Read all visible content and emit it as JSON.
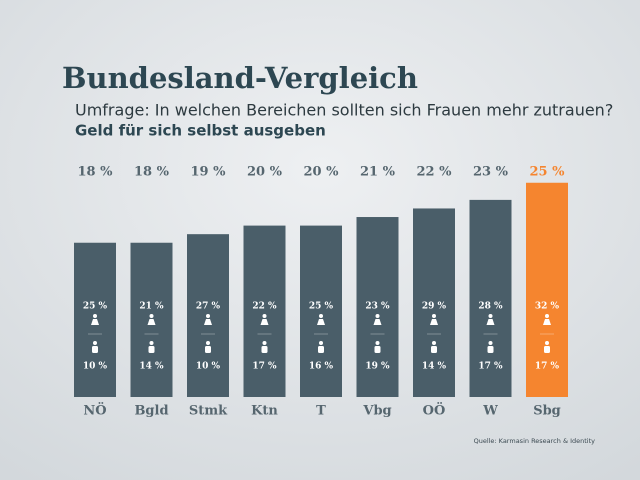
{
  "chart_data": {
    "type": "bar",
    "title": "Bundesland-Vergleich",
    "subtitle": "Umfrage: In welchen Bereichen sollten sich Frauen mehr zutrauen?",
    "question": "Geld für sich selbst ausgeben",
    "source": "Quelle: Karmasin Research & Identity",
    "categories": [
      "NÖ",
      "Bgld",
      "Stmk",
      "Ktn",
      "T",
      "Vbg",
      "OÖ",
      "W",
      "Sbg"
    ],
    "values": [
      18,
      18,
      19,
      20,
      20,
      21,
      22,
      23,
      25
    ],
    "value_labels": [
      "18 %",
      "18 %",
      "19 %",
      "20 %",
      "20 %",
      "21 %",
      "22 %",
      "23 %",
      "25 %"
    ],
    "colors": [
      "#4a5e69",
      "#4a5e69",
      "#4a5e69",
      "#4a5e69",
      "#4a5e69",
      "#4a5e69",
      "#4a5e69",
      "#4a5e69",
      "#f5852f"
    ],
    "label_colors": [
      "#56666f",
      "#56666f",
      "#56666f",
      "#56666f",
      "#56666f",
      "#56666f",
      "#56666f",
      "#56666f",
      "#f5852f"
    ],
    "female": {
      "values": [
        25,
        21,
        27,
        22,
        25,
        23,
        29,
        28,
        32
      ],
      "value_labels": [
        "25 %",
        "21 %",
        "27 %",
        "22 %",
        "25 %",
        "23 %",
        "29 %",
        "28 %",
        "32 %"
      ]
    },
    "male": {
      "values": [
        10,
        14,
        10,
        17,
        16,
        19,
        14,
        17,
        17
      ],
      "value_labels": [
        "10 %",
        "14 %",
        "10 %",
        "17 %",
        "16 %",
        "19 %",
        "14 %",
        "17 %",
        "17 %"
      ]
    }
  }
}
